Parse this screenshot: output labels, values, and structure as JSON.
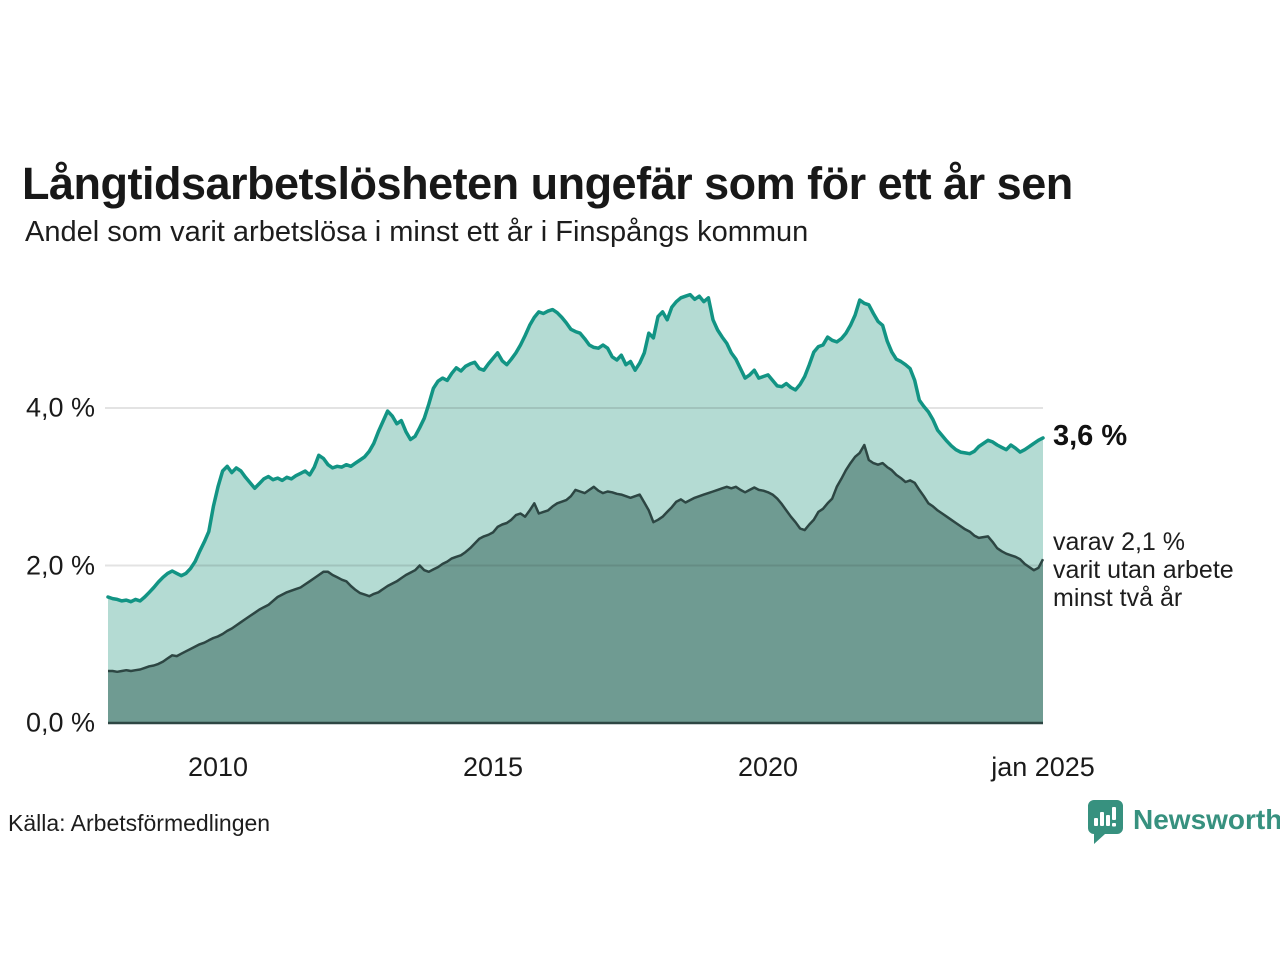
{
  "header": {
    "title": "Långtidsarbetslösheten ungefär som för ett år sen",
    "subtitle": "Andel som varit arbetslösa i minst ett år i Finspångs kommun"
  },
  "annotations": {
    "total_value_label": "3,6 %",
    "note_line1": "varav 2,1 %",
    "note_line2": "varit utan arbete",
    "note_line3": "minst två år"
  },
  "footer": {
    "source": "Källa: Arbetsförmedlingen",
    "brand": "Newsworthy"
  },
  "colors": {
    "total_line": "#129484",
    "total_fill": "#b4dbd3",
    "sub_fill": "#6f9b92",
    "sub_line": "#2d4643",
    "baseline": "#2d4643",
    "grid": "rgba(40,40,40,0.13)",
    "brand_teal": "#37917f",
    "text": "#1a1a1a"
  },
  "chart_data": {
    "type": "area",
    "title": "Långtidsarbetslösheten ungefär som för ett år sen",
    "subtitle": "Andel som varit arbetslösa i minst ett år i Finspångs kommun",
    "unit": "percent",
    "grid": "horizontal",
    "legend_position": "right-annotations",
    "x_range": {
      "start": "2008-01",
      "end": "2025-01",
      "freq": "monthly"
    },
    "xlabel": "",
    "ylabel": "",
    "ylim": [
      0,
      5.8
    ],
    "x_ticks": [
      {
        "label": "2010",
        "month_index": 24
      },
      {
        "label": "2015",
        "month_index": 84
      },
      {
        "label": "2020",
        "month_index": 144
      },
      {
        "label": "jan 2025",
        "month_index": 204
      }
    ],
    "y_ticks": [
      {
        "label": "0,0 %",
        "value": 0
      },
      {
        "label": "2,0 %",
        "value": 2
      },
      {
        "label": "4,0 %",
        "value": 4
      }
    ],
    "series": [
      {
        "name": "Andel arbetslösa minst ett år",
        "end_value": 3.6,
        "values": [
          1.6,
          1.58,
          1.57,
          1.55,
          1.56,
          1.54,
          1.57,
          1.55,
          1.6,
          1.66,
          1.72,
          1.79,
          1.85,
          1.9,
          1.93,
          1.9,
          1.87,
          1.9,
          1.96,
          2.05,
          2.18,
          2.3,
          2.43,
          2.75,
          3.0,
          3.2,
          3.26,
          3.18,
          3.24,
          3.2,
          3.12,
          3.05,
          2.98,
          3.04,
          3.1,
          3.13,
          3.09,
          3.11,
          3.08,
          3.12,
          3.1,
          3.14,
          3.17,
          3.2,
          3.15,
          3.25,
          3.4,
          3.36,
          3.28,
          3.24,
          3.26,
          3.25,
          3.28,
          3.26,
          3.3,
          3.34,
          3.38,
          3.45,
          3.55,
          3.7,
          3.83,
          3.96,
          3.9,
          3.8,
          3.84,
          3.7,
          3.6,
          3.64,
          3.75,
          3.87,
          4.05,
          4.25,
          4.34,
          4.38,
          4.35,
          4.44,
          4.51,
          4.47,
          4.53,
          4.56,
          4.58,
          4.5,
          4.48,
          4.56,
          4.63,
          4.7,
          4.6,
          4.55,
          4.62,
          4.7,
          4.8,
          4.92,
          5.05,
          5.15,
          5.22,
          5.2,
          5.23,
          5.25,
          5.21,
          5.15,
          5.08,
          5.0,
          4.97,
          4.95,
          4.88,
          4.8,
          4.77,
          4.76,
          4.8,
          4.76,
          4.65,
          4.61,
          4.67,
          4.55,
          4.59,
          4.48,
          4.57,
          4.7,
          4.95,
          4.89,
          5.16,
          5.22,
          5.12,
          5.28,
          5.35,
          5.4,
          5.42,
          5.44,
          5.38,
          5.42,
          5.35,
          5.4,
          5.12,
          4.99,
          4.9,
          4.82,
          4.7,
          4.62,
          4.5,
          4.38,
          4.42,
          4.48,
          4.38,
          4.4,
          4.42,
          4.35,
          4.28,
          4.27,
          4.31,
          4.26,
          4.23,
          4.3,
          4.4,
          4.55,
          4.71,
          4.78,
          4.8,
          4.9,
          4.86,
          4.84,
          4.88,
          4.95,
          5.05,
          5.18,
          5.37,
          5.33,
          5.31,
          5.2,
          5.1,
          5.05,
          4.85,
          4.71,
          4.62,
          4.59,
          4.55,
          4.5,
          4.35,
          4.1,
          4.02,
          3.95,
          3.85,
          3.72,
          3.65,
          3.58,
          3.52,
          3.47,
          3.44,
          3.43,
          3.42,
          3.45,
          3.51,
          3.55,
          3.59,
          3.57,
          3.53,
          3.5,
          3.47,
          3.53,
          3.49,
          3.44,
          3.47,
          3.51,
          3.55,
          3.59,
          3.62
        ]
      },
      {
        "name": "varav utan arbete minst två år",
        "end_value": 2.1,
        "values": [
          0.66,
          0.66,
          0.65,
          0.66,
          0.67,
          0.66,
          0.67,
          0.68,
          0.7,
          0.72,
          0.73,
          0.75,
          0.78,
          0.82,
          0.86,
          0.85,
          0.88,
          0.91,
          0.94,
          0.97,
          1.0,
          1.02,
          1.05,
          1.08,
          1.1,
          1.13,
          1.17,
          1.2,
          1.24,
          1.28,
          1.32,
          1.36,
          1.4,
          1.44,
          1.47,
          1.5,
          1.55,
          1.6,
          1.63,
          1.66,
          1.68,
          1.7,
          1.72,
          1.76,
          1.8,
          1.84,
          1.88,
          1.92,
          1.92,
          1.88,
          1.85,
          1.82,
          1.8,
          1.74,
          1.69,
          1.65,
          1.63,
          1.61,
          1.64,
          1.66,
          1.7,
          1.74,
          1.77,
          1.8,
          1.84,
          1.88,
          1.91,
          1.94,
          2.0,
          1.94,
          1.92,
          1.95,
          1.98,
          2.02,
          2.05,
          2.09,
          2.11,
          2.13,
          2.17,
          2.22,
          2.28,
          2.34,
          2.37,
          2.39,
          2.42,
          2.49,
          2.52,
          2.54,
          2.58,
          2.64,
          2.66,
          2.62,
          2.7,
          2.79,
          2.66,
          2.68,
          2.7,
          2.75,
          2.79,
          2.81,
          2.83,
          2.88,
          2.96,
          2.94,
          2.92,
          2.96,
          3.0,
          2.95,
          2.92,
          2.94,
          2.93,
          2.91,
          2.9,
          2.88,
          2.86,
          2.88,
          2.9,
          2.8,
          2.7,
          2.55,
          2.58,
          2.62,
          2.68,
          2.74,
          2.81,
          2.84,
          2.8,
          2.83,
          2.86,
          2.88,
          2.9,
          2.92,
          2.94,
          2.96,
          2.98,
          3.0,
          2.98,
          3.0,
          2.96,
          2.93,
          2.96,
          2.99,
          2.96,
          2.95,
          2.93,
          2.9,
          2.85,
          2.78,
          2.7,
          2.62,
          2.55,
          2.47,
          2.45,
          2.52,
          2.58,
          2.68,
          2.72,
          2.79,
          2.85,
          3.0,
          3.1,
          3.21,
          3.3,
          3.38,
          3.43,
          3.53,
          3.34,
          3.3,
          3.28,
          3.3,
          3.25,
          3.21,
          3.15,
          3.11,
          3.06,
          3.08,
          3.05,
          2.96,
          2.88,
          2.79,
          2.75,
          2.7,
          2.66,
          2.62,
          2.58,
          2.54,
          2.5,
          2.46,
          2.43,
          2.38,
          2.35,
          2.36,
          2.37,
          2.3,
          2.22,
          2.18,
          2.15,
          2.13,
          2.11,
          2.08,
          2.02,
          1.98,
          1.94,
          1.97,
          2.08
        ]
      }
    ]
  }
}
